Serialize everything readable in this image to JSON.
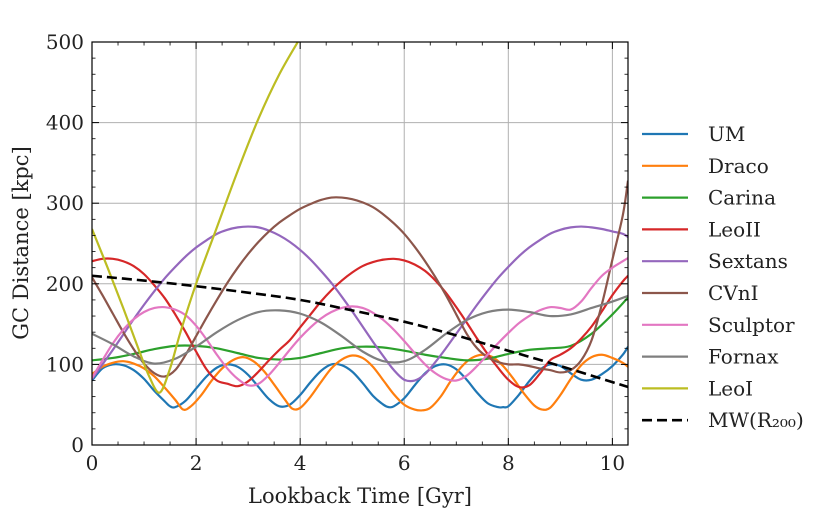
{
  "chart_data": {
    "type": "line",
    "title": "",
    "xlabel": "Lookback Time [Gyr]",
    "ylabel": "GC Distance [kpc]",
    "xlim": [
      0,
      10.3
    ],
    "ylim": [
      0,
      500
    ],
    "xticks": [
      0,
      2,
      4,
      6,
      8,
      10
    ],
    "yticks": [
      0,
      100,
      200,
      300,
      400,
      500
    ],
    "grid": true,
    "legend_position": "right",
    "series": [
      {
        "name": "UM",
        "color": "#1f77b4",
        "style": "solid",
        "x": [
          0.0,
          0.2,
          0.4,
          0.6,
          0.8,
          1.0,
          1.2,
          1.4,
          1.5,
          1.6,
          1.8,
          2.0,
          2.2,
          2.4,
          2.6,
          2.8,
          3.0,
          3.2,
          3.4,
          3.6,
          3.8,
          4.0,
          4.2,
          4.4,
          4.6,
          4.8,
          5.0,
          5.2,
          5.4,
          5.6,
          5.7,
          5.8,
          6.0,
          6.2,
          6.4,
          6.6,
          6.8,
          7.0,
          7.2,
          7.4,
          7.6,
          7.8,
          7.9,
          8.0,
          8.2,
          8.4,
          8.6,
          8.8,
          9.0,
          9.2,
          9.4,
          9.6,
          9.8,
          10.0,
          10.2,
          10.3
        ],
        "y": [
          80,
          95,
          100,
          99,
          93,
          82,
          67,
          54,
          48,
          47,
          55,
          70,
          85,
          96,
          100,
          97,
          87,
          72,
          57,
          48,
          50,
          62,
          78,
          92,
          100,
          99,
          91,
          77,
          61,
          50,
          47,
          48,
          58,
          74,
          89,
          98,
          100,
          94,
          81,
          65,
          52,
          47,
          47,
          48,
          62,
          79,
          93,
          100,
          98,
          89,
          81,
          81,
          88,
          98,
          112,
          122
        ]
      },
      {
        "name": "Draco",
        "color": "#ff7f0e",
        "style": "solid",
        "x": [
          0.0,
          0.2,
          0.4,
          0.6,
          0.8,
          1.0,
          1.2,
          1.4,
          1.6,
          1.75,
          1.9,
          2.1,
          2.3,
          2.5,
          2.7,
          2.9,
          3.1,
          3.3,
          3.5,
          3.7,
          3.85,
          4.0,
          4.2,
          4.4,
          4.6,
          4.8,
          5.0,
          5.2,
          5.4,
          5.6,
          5.8,
          6.0,
          6.2,
          6.35,
          6.5,
          6.7,
          6.9,
          7.1,
          7.3,
          7.5,
          7.7,
          7.9,
          8.1,
          8.3,
          8.5,
          8.65,
          8.8,
          9.0,
          9.2,
          9.4,
          9.6,
          9.8,
          10.0,
          10.2,
          10.3
        ],
        "y": [
          88,
          97,
          102,
          104,
          101,
          95,
          85,
          71,
          56,
          44,
          48,
          62,
          80,
          95,
          105,
          109,
          104,
          92,
          75,
          57,
          45,
          46,
          60,
          78,
          95,
          106,
          111,
          108,
          97,
          80,
          63,
          50,
          44,
          43,
          46,
          60,
          80,
          97,
          108,
          112,
          109,
          98,
          82,
          64,
          49,
          44,
          46,
          62,
          82,
          99,
          109,
          112,
          108,
          102,
          97
        ]
      },
      {
        "name": "Carina",
        "color": "#2ca02c",
        "style": "solid",
        "x": [
          0.0,
          0.4,
          0.8,
          1.2,
          1.6,
          2.0,
          2.4,
          2.8,
          3.2,
          3.6,
          4.0,
          4.4,
          4.8,
          5.2,
          5.6,
          6.0,
          6.4,
          6.8,
          7.2,
          7.6,
          8.0,
          8.4,
          8.8,
          9.2,
          9.6,
          10.0,
          10.3
        ],
        "y": [
          105,
          108,
          113,
          119,
          123,
          123,
          120,
          114,
          108,
          106,
          108,
          114,
          120,
          122,
          121,
          117,
          112,
          108,
          105,
          107,
          113,
          118,
          120,
          123,
          138,
          162,
          183
        ]
      },
      {
        "name": "LeoII",
        "color": "#d62728",
        "style": "solid",
        "x": [
          0.0,
          0.2,
          0.4,
          0.6,
          0.8,
          1.0,
          1.2,
          1.4,
          1.6,
          1.8,
          2.0,
          2.2,
          2.4,
          2.6,
          2.8,
          3.0,
          3.2,
          3.4,
          3.6,
          3.8,
          4.0,
          4.2,
          4.4,
          4.6,
          4.8,
          5.0,
          5.2,
          5.4,
          5.6,
          5.8,
          6.0,
          6.2,
          6.4,
          6.6,
          6.8,
          7.0,
          7.2,
          7.4,
          7.6,
          7.8,
          8.0,
          8.2,
          8.4,
          8.6,
          8.8,
          9.0,
          9.2,
          9.4,
          9.6,
          9.8,
          10.0,
          10.2,
          10.3
        ],
        "y": [
          228,
          231,
          231,
          228,
          222,
          212,
          198,
          182,
          162,
          140,
          116,
          94,
          80,
          76,
          73,
          79,
          91,
          105,
          118,
          130,
          146,
          162,
          178,
          192,
          204,
          214,
          222,
          227,
          230,
          231,
          229,
          224,
          216,
          204,
          189,
          171,
          152,
          132,
          113,
          96,
          81,
          72,
          74,
          88,
          105,
          112,
          120,
          132,
          147,
          166,
          186,
          203,
          210
        ]
      },
      {
        "name": "Sextans",
        "color": "#9467bd",
        "style": "solid",
        "x": [
          0.0,
          0.2,
          0.4,
          0.6,
          0.8,
          1.0,
          1.2,
          1.4,
          1.6,
          1.8,
          2.0,
          2.2,
          2.4,
          2.6,
          2.8,
          3.0,
          3.2,
          3.4,
          3.6,
          3.8,
          4.0,
          4.2,
          4.4,
          4.6,
          4.8,
          5.0,
          5.2,
          5.4,
          5.6,
          5.8,
          6.0,
          6.2,
          6.4,
          6.6,
          6.8,
          7.0,
          7.2,
          7.4,
          7.6,
          7.8,
          8.0,
          8.2,
          8.4,
          8.6,
          8.8,
          9.0,
          9.2,
          9.4,
          9.6,
          9.8,
          10.0,
          10.2,
          10.3
        ],
        "y": [
          82,
          100,
          118,
          137,
          156,
          174,
          191,
          207,
          221,
          234,
          245,
          254,
          262,
          267,
          270,
          271,
          270,
          266,
          260,
          252,
          242,
          230,
          216,
          201,
          184,
          166,
          147,
          128,
          110,
          93,
          81,
          80,
          88,
          103,
          120,
          138,
          156,
          174,
          191,
          207,
          221,
          234,
          245,
          254,
          262,
          267,
          270,
          271,
          270,
          268,
          265,
          262,
          258
        ]
      },
      {
        "name": "CVnI",
        "color": "#8c564b",
        "style": "solid",
        "x": [
          0.0,
          0.2,
          0.4,
          0.6,
          0.8,
          1.0,
          1.2,
          1.4,
          1.6,
          1.8,
          2.0,
          2.2,
          2.4,
          2.6,
          2.8,
          3.0,
          3.2,
          3.4,
          3.6,
          3.8,
          4.0,
          4.2,
          4.4,
          4.6,
          4.8,
          5.0,
          5.2,
          5.4,
          5.6,
          5.8,
          6.0,
          6.2,
          6.4,
          6.6,
          6.8,
          7.0,
          7.2,
          7.4,
          7.6,
          7.8,
          8.0,
          8.2,
          8.4,
          8.6,
          8.8,
          9.0,
          9.2,
          9.4,
          9.6,
          9.8,
          10.0,
          10.2,
          10.3
        ],
        "y": [
          208,
          186,
          163,
          140,
          119,
          101,
          89,
          85,
          93,
          112,
          135,
          158,
          180,
          201,
          220,
          237,
          252,
          265,
          276,
          285,
          293,
          299,
          304,
          307,
          307,
          305,
          301,
          295,
          286,
          275,
          262,
          246,
          228,
          208,
          186,
          162,
          138,
          120,
          109,
          103,
          100,
          100,
          98,
          95,
          93,
          90,
          93,
          105,
          130,
          175,
          230,
          285,
          328
        ]
      },
      {
        "name": "Sculptor",
        "color": "#e377c2",
        "style": "solid",
        "x": [
          0.0,
          0.2,
          0.4,
          0.6,
          0.8,
          1.0,
          1.2,
          1.4,
          1.6,
          1.8,
          2.0,
          2.2,
          2.4,
          2.6,
          2.8,
          3.0,
          3.2,
          3.4,
          3.6,
          3.8,
          4.0,
          4.2,
          4.4,
          4.6,
          4.8,
          5.0,
          5.2,
          5.4,
          5.6,
          5.8,
          6.0,
          6.2,
          6.4,
          6.6,
          6.8,
          7.0,
          7.2,
          7.4,
          7.6,
          7.8,
          8.0,
          8.2,
          8.4,
          8.6,
          8.8,
          9.0,
          9.2,
          9.4,
          9.6,
          9.8,
          10.0,
          10.2,
          10.3
        ],
        "y": [
          83,
          105,
          126,
          143,
          156,
          165,
          170,
          171,
          168,
          161,
          148,
          131,
          112,
          95,
          82,
          74,
          76,
          87,
          102,
          118,
          133,
          146,
          157,
          165,
          170,
          172,
          170,
          164,
          155,
          143,
          129,
          114,
          100,
          89,
          82,
          80,
          86,
          98,
          112,
          126,
          139,
          151,
          160,
          167,
          171,
          170,
          168,
          178,
          195,
          210,
          220,
          228,
          232
        ]
      },
      {
        "name": "Fornax",
        "color": "#7f7f7f",
        "style": "solid",
        "x": [
          0.0,
          0.4,
          0.8,
          1.2,
          1.6,
          2.0,
          2.4,
          2.8,
          3.2,
          3.6,
          4.0,
          4.4,
          4.8,
          5.2,
          5.6,
          6.0,
          6.4,
          6.8,
          7.2,
          7.6,
          8.0,
          8.4,
          8.8,
          9.2,
          9.6,
          10.0,
          10.3
        ],
        "y": [
          138,
          125,
          110,
          101,
          107,
          122,
          140,
          155,
          165,
          167,
          163,
          152,
          135,
          116,
          104,
          104,
          118,
          138,
          155,
          165,
          168,
          165,
          160,
          162,
          170,
          178,
          185
        ]
      },
      {
        "name": "LeoI",
        "color": "#bcbd22",
        "style": "solid",
        "x": [
          0.0,
          0.3,
          0.6,
          0.9,
          1.1,
          1.3,
          1.5,
          1.7,
          2.0,
          2.4,
          2.8,
          3.2,
          3.6,
          4.0
        ],
        "y": [
          268,
          220,
          170,
          118,
          85,
          65,
          95,
          140,
          200,
          270,
          340,
          405,
          460,
          505
        ]
      },
      {
        "name": "MW(R₂₀₀)",
        "color": "#000000",
        "style": "dashed",
        "x": [
          0,
          1,
          2,
          3,
          4,
          5,
          6,
          7,
          8,
          9,
          10,
          10.3
        ],
        "y": [
          210,
          204,
          197,
          189,
          180,
          167,
          153,
          136,
          117,
          98,
          78,
          72
        ]
      }
    ]
  }
}
